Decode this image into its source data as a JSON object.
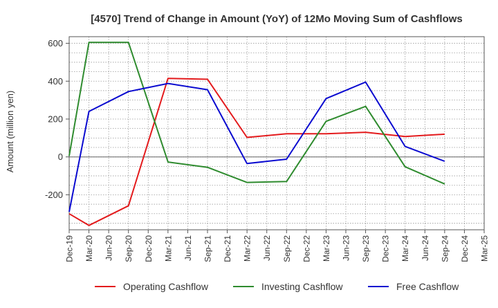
{
  "chart_data": {
    "type": "line",
    "title": "[4570]  Trend of Change in Amount (YoY) of 12Mo Moving Sum of Cashflows",
    "xlabel": "",
    "ylabel": "Amount (million yen)",
    "ylim": [
      -385,
      635
    ],
    "yticks": [
      -200,
      0,
      200,
      400,
      600
    ],
    "grid": true,
    "legend_position": "bottom",
    "categories": [
      "Dec-19",
      "Mar-20",
      "Jun-20",
      "Sep-20",
      "Dec-20",
      "Mar-21",
      "Jun-21",
      "Sep-21",
      "Dec-21",
      "Mar-22",
      "Jun-22",
      "Sep-22",
      "Dec-22",
      "Mar-23",
      "Jun-23",
      "Sep-23",
      "Dec-23",
      "Mar-24",
      "Jun-24",
      "Sep-24",
      "Dec-24",
      "Mar-25"
    ],
    "series": [
      {
        "name": "Operating Cashflow",
        "color": "#e31a1c",
        "values": [
          -300,
          -362,
          null,
          -258,
          null,
          415,
          null,
          410,
          null,
          103,
          null,
          122,
          null,
          122,
          null,
          130,
          null,
          108,
          null,
          120,
          null,
          null
        ]
      },
      {
        "name": "Investing Cashflow",
        "color": "#2e8b2e",
        "values": [
          5,
          605,
          null,
          605,
          null,
          -27,
          null,
          -55,
          null,
          -135,
          null,
          -130,
          null,
          188,
          null,
          267,
          null,
          -52,
          null,
          -143,
          null,
          null
        ]
      },
      {
        "name": "Free Cashflow",
        "color": "#0a0ad0",
        "values": [
          -290,
          240,
          null,
          345,
          null,
          388,
          null,
          355,
          null,
          -35,
          null,
          -12,
          null,
          308,
          null,
          395,
          null,
          55,
          null,
          -23,
          null,
          null
        ]
      }
    ]
  }
}
